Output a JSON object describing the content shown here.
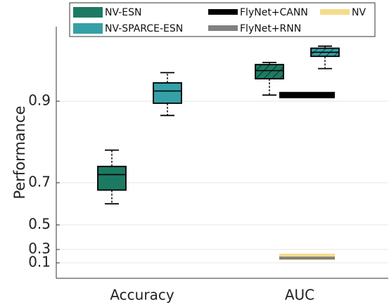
{
  "chart_data": {
    "type": "box",
    "ylabel": "Performance",
    "categories": [
      "Accuracy",
      "AUC"
    ],
    "y_ticks": [
      "0.1",
      "0.3",
      "0.5",
      "0.7",
      "0.9"
    ],
    "grid": true,
    "legend": {
      "placement": "top",
      "entries": [
        {
          "name": "NV-ESN",
          "color": "#1c7a63",
          "style": "box"
        },
        {
          "name": "NV-SPARCE-ESN",
          "color": "#35a0a6",
          "style": "box"
        },
        {
          "name": "FlyNet+CANN",
          "color": "#000000",
          "style": "line"
        },
        {
          "name": "FlyNet+RNN",
          "color": "#808080",
          "style": "line"
        },
        {
          "name": "NV",
          "color": "#f5dc8c",
          "style": "line"
        }
      ]
    },
    "box_series": [
      {
        "name": "NV-ESN",
        "category": "Accuracy",
        "min": 0.6,
        "q1": 0.665,
        "median": 0.72,
        "q3": 0.74,
        "max": 0.78,
        "hatched": false
      },
      {
        "name": "NV-SPARCE-ESN",
        "category": "Accuracy",
        "min": 0.865,
        "q1": 0.895,
        "median": 0.925,
        "q3": 0.945,
        "max": 0.97,
        "hatched": false
      },
      {
        "name": "NV-ESN",
        "category": "AUC",
        "min": 0.915,
        "q1": 0.955,
        "median": 0.975,
        "q3": 0.99,
        "max": 0.995,
        "hatched": true
      },
      {
        "name": "NV-SPARCE-ESN",
        "category": "AUC",
        "min": 0.98,
        "q1": 1.01,
        "median": 1.02,
        "q3": 1.03,
        "max": 1.035,
        "hatched": true
      }
    ],
    "line_series": [
      {
        "name": "FlyNet+CANN",
        "category": "AUC",
        "value": 0.915
      },
      {
        "name": "NV",
        "category": "AUC",
        "value": 0.19
      },
      {
        "name": "FlyNet+RNN",
        "category": "AUC",
        "value": 0.173
      }
    ]
  }
}
